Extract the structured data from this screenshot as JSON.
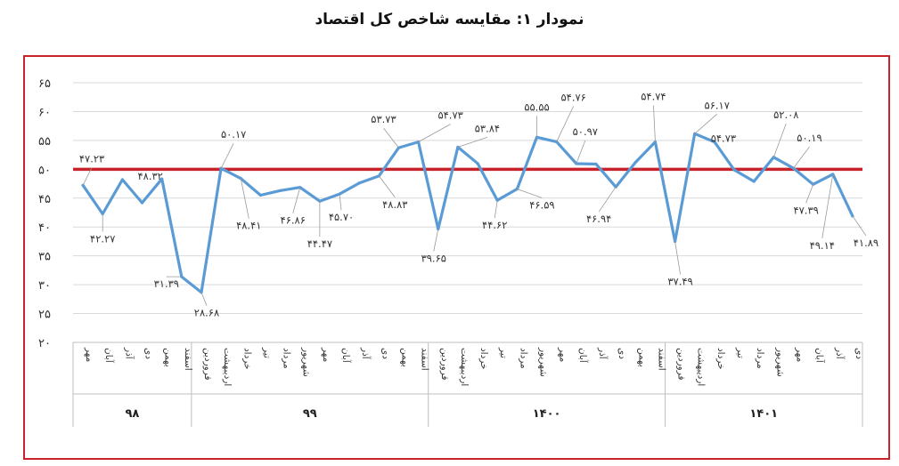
{
  "title": "نمودار ۱: مقایسه شاخص کل اقتصاد",
  "chart_data": {
    "type": "line",
    "ylim": [
      20,
      65
    ],
    "yticks": [
      "۶۵",
      "۶۰",
      "۵۵",
      "۵۰",
      "۴۵",
      "۴۰",
      "۳۵",
      "۳۰",
      "۲۵",
      "۲۰"
    ],
    "yticks_values": [
      65,
      60,
      55,
      50,
      45,
      40,
      35,
      30,
      25,
      20
    ],
    "reference_line": {
      "value": 50,
      "color": "#c8222a"
    },
    "line_color": "#5b9bd5",
    "grid": true,
    "categories": [
      "مهر",
      "آبان",
      "آذر",
      "دی",
      "بهمن",
      "اسفند",
      "فروردین",
      "اردیبهشت",
      "خرداد",
      "تیر",
      "مرداد",
      "شهریور",
      "مهر",
      "آبان",
      "آذر",
      "دی",
      "بهمن",
      "اسفند",
      "فروردین",
      "اردیبهشت",
      "خرداد",
      "تیر",
      "مرداد",
      "شهریور",
      "مهر",
      "آبان",
      "آذر",
      "دی",
      "بهمن",
      "اسفند",
      "فروردین",
      "اردیبهشت",
      "خرداد",
      "تیر",
      "مرداد",
      "شهریور",
      "مهر",
      "آبان",
      "آذر",
      "دی"
    ],
    "year_groups": [
      {
        "label": "۹۸",
        "count": 6
      },
      {
        "label": "۹۹",
        "count": 12
      },
      {
        "label": "۱۴۰۰",
        "count": 12
      },
      {
        "label": "۱۴۰۱",
        "count": 10
      }
    ],
    "values": [
      47.23,
      42.27,
      48.2,
      44.2,
      48.32,
      31.39,
      28.68,
      50.17,
      48.41,
      45.5,
      46.3,
      46.86,
      44.47,
      45.7,
      47.6,
      48.83,
      53.73,
      54.73,
      39.65,
      53.84,
      51.0,
      44.62,
      46.59,
      55.55,
      54.76,
      50.97,
      50.9,
      46.94,
      51.2,
      54.74,
      37.49,
      56.17,
      54.73,
      49.9,
      47.9,
      52.08,
      50.19,
      47.39,
      49.14,
      41.89
    ],
    "data_labels": [
      {
        "i": 0,
        "text": "۴۷.۲۳",
        "dx": 10,
        "dy": -26
      },
      {
        "i": 1,
        "text": "۴۲.۲۷",
        "dx": 0,
        "dy": 32
      },
      {
        "i": 4,
        "text": "۴۸.۳۲",
        "dx": -13,
        "dy": 1
      },
      {
        "i": 5,
        "text": "۳۱.۳۹",
        "dx": -17,
        "dy": 12
      },
      {
        "i": 6,
        "text": "۲۸.۶۸",
        "dx": 6,
        "dy": 27
      },
      {
        "i": 7,
        "text": "۵۰.۱۷",
        "dx": 14,
        "dy": -34
      },
      {
        "i": 8,
        "text": "۴۸.۴۱",
        "dx": 9,
        "dy": 57
      },
      {
        "i": 11,
        "text": "۴۶.۸۶",
        "dx": -8,
        "dy": 41
      },
      {
        "i": 12,
        "text": "۴۴.۴۷",
        "dx": 0,
        "dy": 52
      },
      {
        "i": 13,
        "text": "۴۵.۷۰",
        "dx": 2,
        "dy": 30
      },
      {
        "i": 15,
        "text": "۴۸.۸۳",
        "dx": 18,
        "dy": 36
      },
      {
        "i": 16,
        "text": "۵۳.۷۳",
        "dx": -17,
        "dy": -28
      },
      {
        "i": 17,
        "text": "۵۴.۷۳",
        "dx": 36,
        "dy": -26
      },
      {
        "i": 18,
        "text": "۳۹.۶۵",
        "dx": -5,
        "dy": 37
      },
      {
        "i": 19,
        "text": "۵۳.۸۴",
        "dx": 33,
        "dy": -17
      },
      {
        "i": 21,
        "text": "۴۴.۶۲",
        "dx": -3,
        "dy": 32
      },
      {
        "i": 22,
        "text": "۴۶.۵۹",
        "dx": 28,
        "dy": 22
      },
      {
        "i": 23,
        "text": "۵۵.۵۵",
        "dx": 0,
        "dy": -30
      },
      {
        "i": 24,
        "text": "۵۴.۷۶",
        "dx": 19,
        "dy": -46
      },
      {
        "i": 25,
        "text": "۵۰.۹۷",
        "dx": 10,
        "dy": -32
      },
      {
        "i": 27,
        "text": "۴۶.۹۴",
        "dx": -19,
        "dy": 40
      },
      {
        "i": 29,
        "text": "۵۴.۷۴",
        "dx": -2,
        "dy": -47
      },
      {
        "i": 30,
        "text": "۳۷.۴۹",
        "dx": 6,
        "dy": 49
      },
      {
        "i": 31,
        "text": "۵۶.۱۷",
        "dx": 25,
        "dy": -28
      },
      {
        "i": 32,
        "text": "۵۴.۷۳",
        "dx": 10,
        "dy": 0
      },
      {
        "i": 35,
        "text": "۵۲.۰۸",
        "dx": 14,
        "dy": -44
      },
      {
        "i": 36,
        "text": "۵۰.۱۹",
        "dx": 18,
        "dy": -30
      },
      {
        "i": 37,
        "text": "۴۷.۳۹",
        "dx": -8,
        "dy": 33
      },
      {
        "i": 38,
        "text": "۴۹.۱۴",
        "dx": -12,
        "dy": 84
      },
      {
        "i": 39,
        "text": "۴۱.۸۹",
        "dx": 15,
        "dy": 34
      }
    ]
  }
}
